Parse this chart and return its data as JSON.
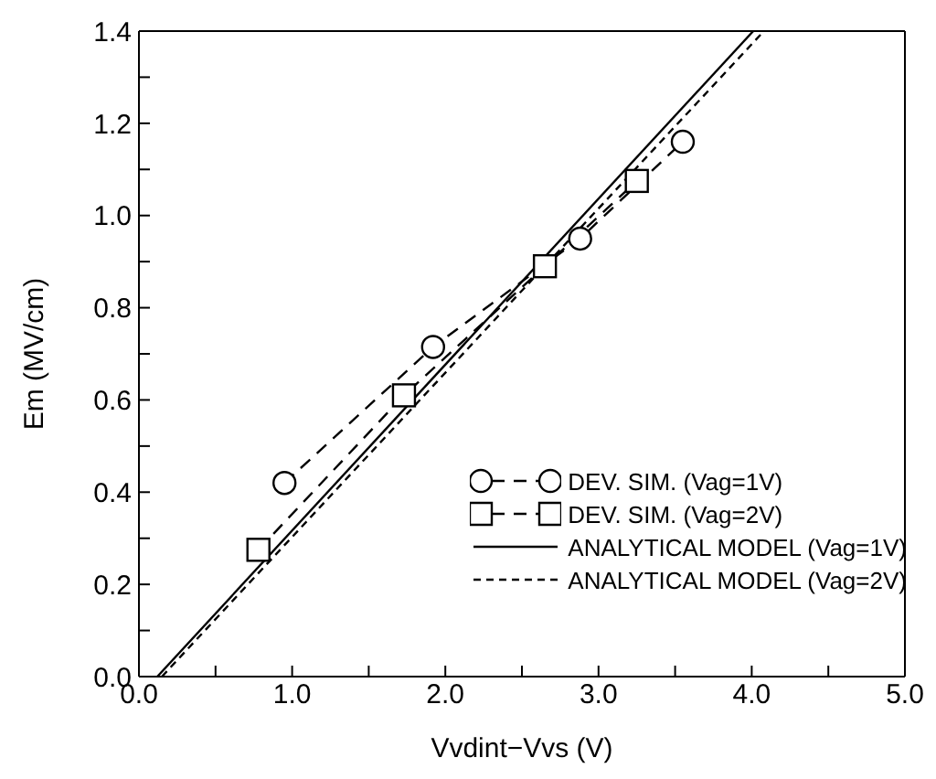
{
  "chart_data": {
    "type": "line",
    "xlabel": "Vvdint−Vvs (V)",
    "ylabel": "Em (MV/cm)",
    "xlim": [
      0,
      5
    ],
    "ylim": [
      0,
      1.4
    ],
    "xticks": [
      {
        "value": 0,
        "label": "0.0"
      },
      {
        "value": 0.5,
        "label": null
      },
      {
        "value": 1,
        "label": "1.0"
      },
      {
        "value": 1.5,
        "label": null
      },
      {
        "value": 2,
        "label": "2.0"
      },
      {
        "value": 2.5,
        "label": null
      },
      {
        "value": 3,
        "label": "3.0"
      },
      {
        "value": 3.5,
        "label": null
      },
      {
        "value": 4,
        "label": "4.0"
      },
      {
        "value": 4.5,
        "label": null
      },
      {
        "value": 5,
        "label": "5.0"
      }
    ],
    "yticks": [
      {
        "value": 0,
        "label": "0.0"
      },
      {
        "value": 0.1,
        "label": null
      },
      {
        "value": 0.2,
        "label": "0.2"
      },
      {
        "value": 0.3,
        "label": null
      },
      {
        "value": 0.4,
        "label": "0.4"
      },
      {
        "value": 0.5,
        "label": null
      },
      {
        "value": 0.6,
        "label": "0.6"
      },
      {
        "value": 0.7,
        "label": null
      },
      {
        "value": 0.8,
        "label": "0.8"
      },
      {
        "value": 0.9,
        "label": null
      },
      {
        "value": 1,
        "label": "1.0"
      },
      {
        "value": 1.1,
        "label": null
      },
      {
        "value": 1.2,
        "label": "1.2"
      },
      {
        "value": 1.3,
        "label": null
      },
      {
        "value": 1.4,
        "label": "1.4"
      }
    ],
    "grid": false,
    "legend": "bottom right",
    "series": [
      {
        "name": "DEV. SIM. (Vag=1V)",
        "color": "#000000",
        "marker": "circle",
        "line_style": "dashed",
        "x": [
          0.95,
          1.92,
          2.88,
          3.55
        ],
        "values": [
          0.42,
          0.715,
          0.95,
          1.16
        ]
      },
      {
        "name": "DEV. SIM. (Vag=2V)",
        "color": "#000000",
        "marker": "square",
        "line_style": "dashed",
        "x": [
          0.78,
          1.73,
          2.65,
          3.25
        ],
        "values": [
          0.275,
          0.61,
          0.89,
          1.075
        ]
      },
      {
        "name": "ANALYTICAL MODEL (Vag=1V)",
        "color": "#000000",
        "marker": "none",
        "line_style": "solid",
        "x": [
          0.12,
          4.01
        ],
        "values": [
          0,
          1.4
        ]
      },
      {
        "name": "ANALYTICAL MODEL (Vag=2V)",
        "color": "#000000",
        "marker": "none",
        "line_style": "dotted",
        "x": [
          0.15,
          4.08
        ],
        "values": [
          0,
          1.4
        ]
      }
    ]
  }
}
